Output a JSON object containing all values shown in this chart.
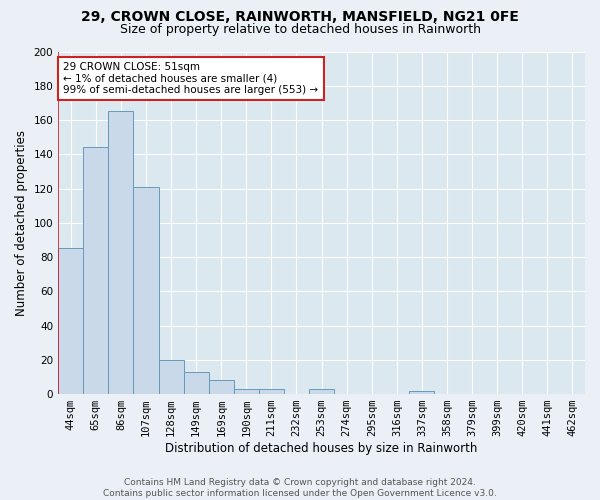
{
  "title": "29, CROWN CLOSE, RAINWORTH, MANSFIELD, NG21 0FE",
  "subtitle": "Size of property relative to detached houses in Rainworth",
  "xlabel": "Distribution of detached houses by size in Rainworth",
  "ylabel": "Number of detached properties",
  "categories": [
    "44sqm",
    "65sqm",
    "86sqm",
    "107sqm",
    "128sqm",
    "149sqm",
    "169sqm",
    "190sqm",
    "211sqm",
    "232sqm",
    "253sqm",
    "274sqm",
    "295sqm",
    "316sqm",
    "337sqm",
    "358sqm",
    "379sqm",
    "399sqm",
    "420sqm",
    "441sqm",
    "462sqm"
  ],
  "values": [
    85,
    144,
    165,
    121,
    20,
    13,
    8,
    3,
    3,
    0,
    3,
    0,
    0,
    0,
    2,
    0,
    0,
    0,
    0,
    0,
    0
  ],
  "bar_color": "#c9d9ea",
  "bar_edge_color": "#6699bb",
  "annotation_text": "29 CROWN CLOSE: 51sqm\n← 1% of detached houses are smaller (4)\n99% of semi-detached houses are larger (553) →",
  "annotation_box_color": "#ffffff",
  "annotation_box_edge_color": "#cc2222",
  "ylim": [
    0,
    200
  ],
  "yticks": [
    0,
    20,
    40,
    60,
    80,
    100,
    120,
    140,
    160,
    180,
    200
  ],
  "footer": "Contains HM Land Registry data © Crown copyright and database right 2024.\nContains public sector information licensed under the Open Government Licence v3.0.",
  "background_color": "#eaf0f6",
  "plot_bg_color": "#dce8f0",
  "grid_color": "#ffffff",
  "title_fontsize": 10,
  "subtitle_fontsize": 9,
  "axis_label_fontsize": 8.5,
  "tick_fontsize": 7.5,
  "annotation_fontsize": 7.5,
  "footer_fontsize": 6.5
}
